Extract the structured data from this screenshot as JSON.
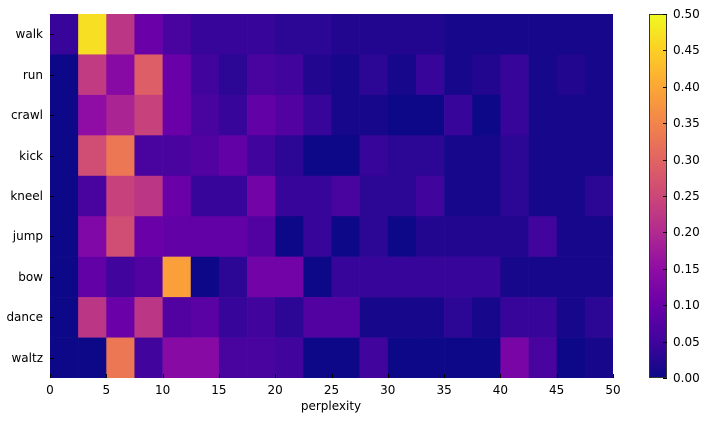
{
  "chart_data": {
    "type": "heatmap",
    "title": "",
    "xlabel": "perplexity",
    "ylabel": "",
    "x_range": [
      0,
      50
    ],
    "bin_width": 2.5,
    "x_bins": [
      0,
      2.5,
      5,
      7.5,
      10,
      12.5,
      15,
      17.5,
      20,
      22.5,
      25,
      27.5,
      30,
      32.5,
      35,
      37.5,
      40,
      42.5,
      45,
      47.5
    ],
    "x_ticks": [
      "0",
      "5",
      "10",
      "15",
      "20",
      "25",
      "30",
      "35",
      "40",
      "45",
      "50"
    ],
    "rows": [
      "walk",
      "run",
      "crawl",
      "kick",
      "kneel",
      "jump",
      "bow",
      "dance",
      "waltz"
    ],
    "values": [
      [
        0.04,
        0.47,
        0.22,
        0.1,
        0.06,
        0.04,
        0.04,
        0.04,
        0.03,
        0.03,
        0.02,
        0.02,
        0.02,
        0.02,
        0.01,
        0.01,
        0.01,
        0.01,
        0.01,
        0.01
      ],
      [
        0.0,
        0.23,
        0.14,
        0.29,
        0.1,
        0.05,
        0.03,
        0.06,
        0.05,
        0.02,
        0.01,
        0.03,
        0.01,
        0.04,
        0.01,
        0.02,
        0.04,
        0.01,
        0.02,
        0.01
      ],
      [
        0.0,
        0.15,
        0.19,
        0.24,
        0.1,
        0.06,
        0.04,
        0.09,
        0.07,
        0.04,
        0.01,
        0.01,
        0.0,
        0.0,
        0.04,
        0.0,
        0.04,
        0.01,
        0.01,
        0.01
      ],
      [
        0.0,
        0.26,
        0.33,
        0.06,
        0.06,
        0.07,
        0.09,
        0.05,
        0.03,
        0.0,
        0.0,
        0.04,
        0.03,
        0.03,
        0.01,
        0.01,
        0.03,
        0.01,
        0.01,
        0.01
      ],
      [
        0.0,
        0.06,
        0.24,
        0.22,
        0.1,
        0.04,
        0.04,
        0.11,
        0.04,
        0.04,
        0.06,
        0.03,
        0.03,
        0.05,
        0.01,
        0.01,
        0.03,
        0.01,
        0.01,
        0.03
      ],
      [
        0.0,
        0.13,
        0.26,
        0.1,
        0.09,
        0.09,
        0.09,
        0.07,
        0.0,
        0.04,
        0.0,
        0.03,
        0.0,
        0.02,
        0.02,
        0.02,
        0.02,
        0.05,
        0.01,
        0.01
      ],
      [
        0.0,
        0.09,
        0.05,
        0.07,
        0.39,
        0.0,
        0.03,
        0.11,
        0.11,
        0.0,
        0.04,
        0.04,
        0.04,
        0.04,
        0.04,
        0.04,
        0.01,
        0.01,
        0.01,
        0.01
      ],
      [
        0.0,
        0.22,
        0.1,
        0.22,
        0.07,
        0.08,
        0.04,
        0.05,
        0.03,
        0.07,
        0.07,
        0.01,
        0.01,
        0.01,
        0.03,
        0.01,
        0.04,
        0.04,
        0.01,
        0.03
      ],
      [
        0.0,
        0.0,
        0.33,
        0.05,
        0.14,
        0.14,
        0.06,
        0.06,
        0.05,
        0.0,
        0.0,
        0.05,
        0.0,
        0.0,
        0.0,
        0.0,
        0.12,
        0.06,
        0.0,
        0.01
      ]
    ],
    "colormap": "plasma",
    "colorbar": {
      "range": [
        0.0,
        0.5
      ],
      "ticks": [
        "0.00",
        "0.05",
        "0.10",
        "0.15",
        "0.20",
        "0.25",
        "0.30",
        "0.35",
        "0.40",
        "0.45",
        "0.50"
      ]
    },
    "grid": false,
    "legend": "colorbar-right"
  },
  "colors": {
    "plasma_stops": [
      "#0d0887",
      "#41049d",
      "#6a00a8",
      "#8f0da4",
      "#b12a90",
      "#cc4778",
      "#e16462",
      "#f2844b",
      "#fca636",
      "#fcce25",
      "#f0f921"
    ]
  }
}
